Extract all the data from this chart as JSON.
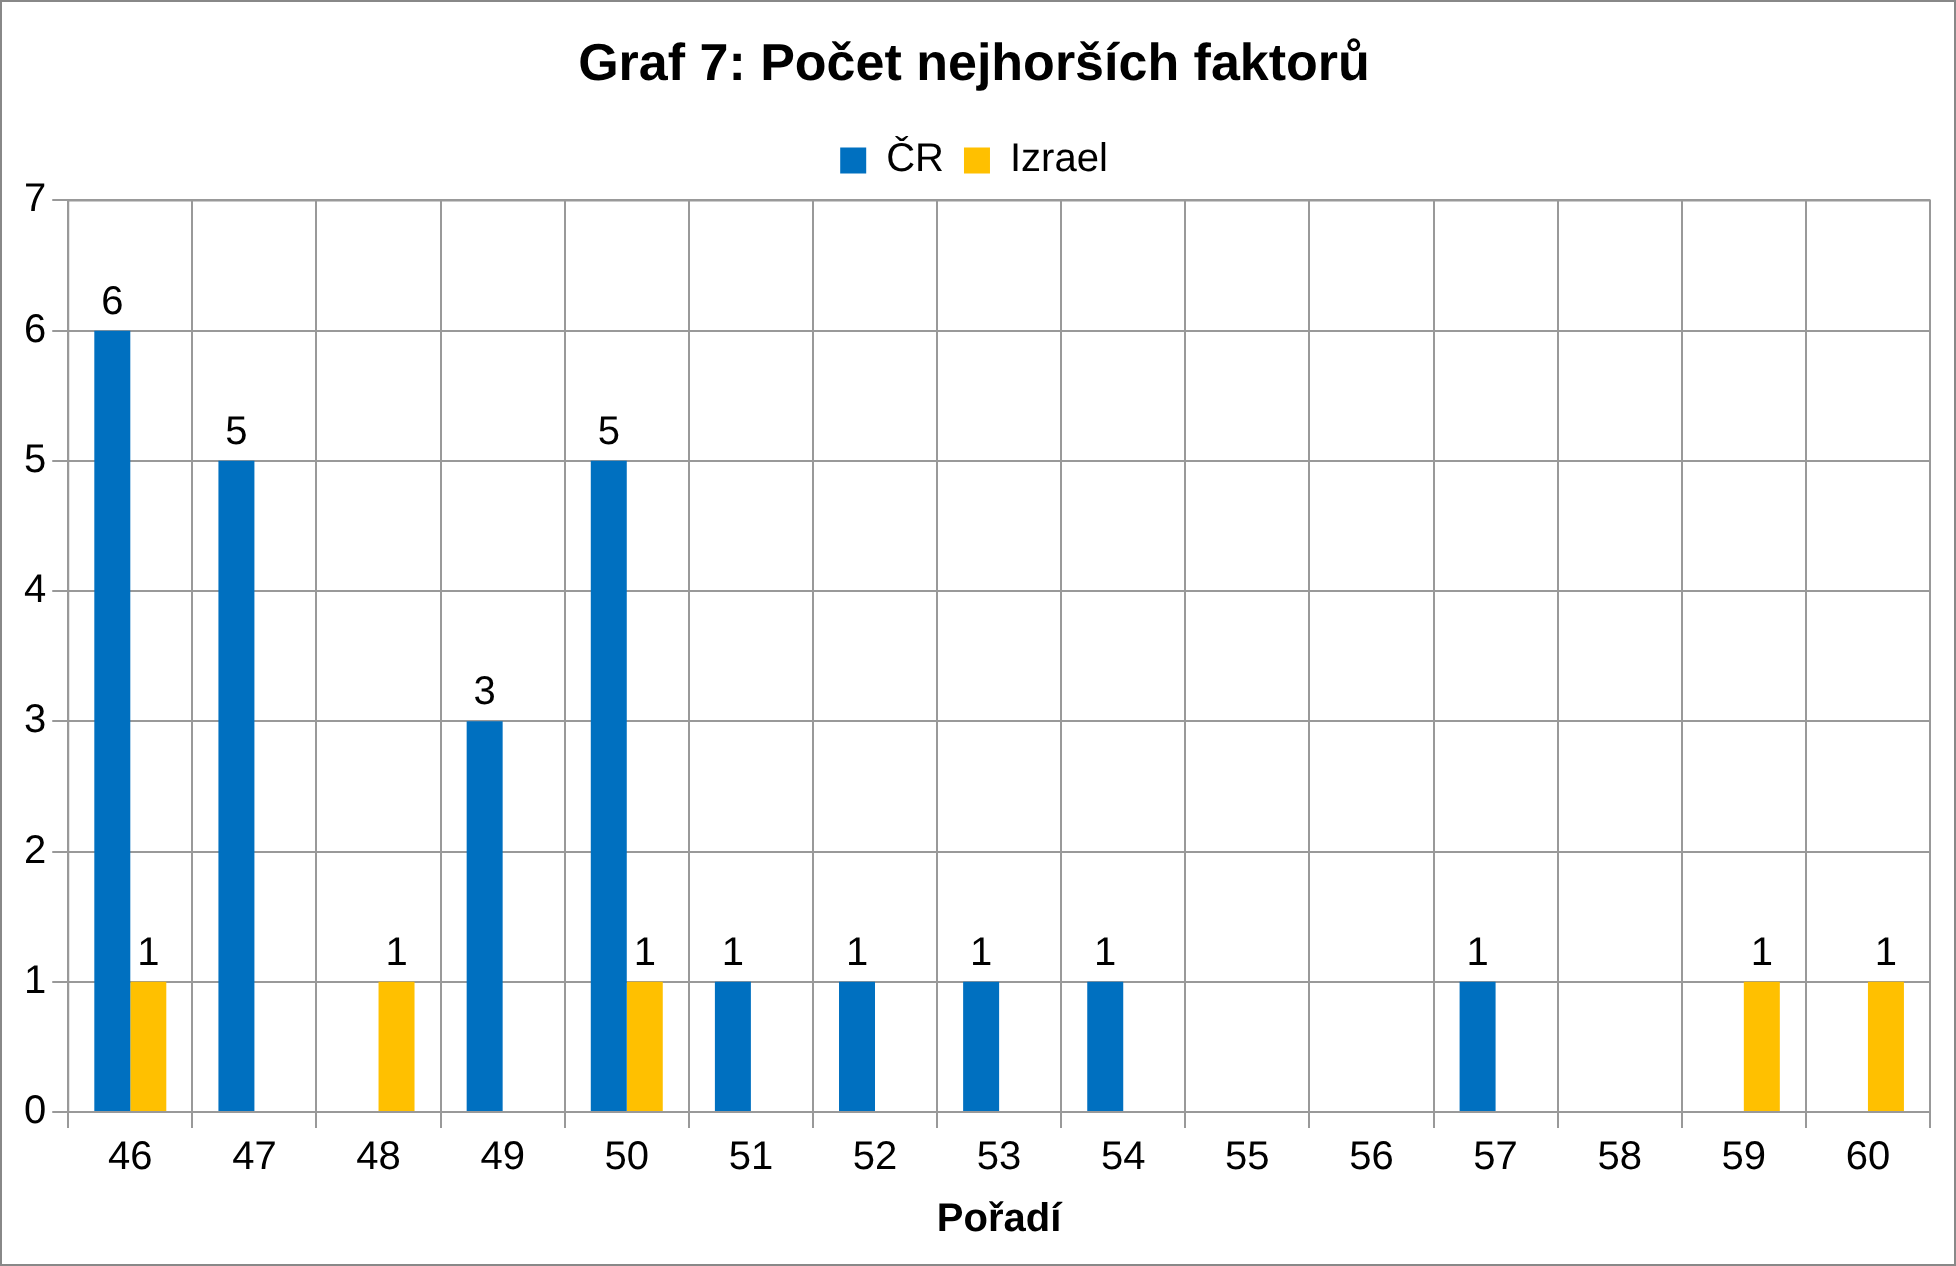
{
  "chart_data": {
    "type": "bar",
    "title": "Graf 7: Počet nejhorších faktorů",
    "xlabel": "Pořadí",
    "categories": [
      "46",
      "47",
      "48",
      "49",
      "50",
      "51",
      "52",
      "53",
      "54",
      "55",
      "56",
      "57",
      "58",
      "59",
      "60"
    ],
    "series": [
      {
        "name": "ČR",
        "color": "#0070c0",
        "values": [
          6,
          5,
          null,
          3,
          5,
          1,
          1,
          1,
          1,
          null,
          null,
          1,
          null,
          null,
          null
        ]
      },
      {
        "name": "Izrael",
        "color": "#ffc000",
        "values": [
          1,
          null,
          1,
          null,
          1,
          null,
          null,
          null,
          null,
          null,
          null,
          null,
          null,
          1,
          1
        ]
      }
    ],
    "ylim": [
      0,
      7
    ],
    "yticks": [
      0,
      1,
      2,
      3,
      4,
      5,
      6,
      7
    ],
    "grid": true,
    "legend": "top",
    "data_labels": true
  }
}
